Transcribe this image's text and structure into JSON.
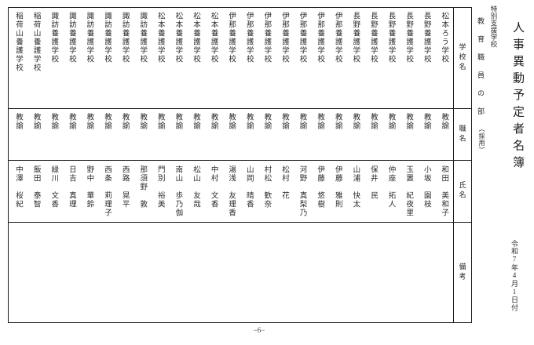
{
  "doc": {
    "title": "人事異動予定者名簿",
    "category": "特別支援学校",
    "section": "教育職員の部",
    "section_sub": "（採用）",
    "date": "令和7年4月1日付",
    "page_number": "−6−"
  },
  "table": {
    "headers": {
      "school": "学校名",
      "job": "職名",
      "name": "氏名",
      "note": "備考"
    },
    "people": [
      {
        "school": "松本ろう学校",
        "job": "教諭",
        "name": "和田　美和子",
        "note": ""
      },
      {
        "school": "長野養護学校",
        "job": "教諭",
        "name": "小坂　園枝",
        "note": ""
      },
      {
        "school": "長野養護学校",
        "job": "教諭",
        "name": "玉置　紀夜里",
        "note": ""
      },
      {
        "school": "長野養護学校",
        "job": "教諭",
        "name": "仲座　拓人",
        "note": ""
      },
      {
        "school": "長野養護学校",
        "job": "教諭",
        "name": "保井　民",
        "note": ""
      },
      {
        "school": "長野養護学校",
        "job": "教諭",
        "name": "山浦　快太",
        "note": ""
      },
      {
        "school": "伊那養護学校",
        "job": "教諭",
        "name": "伊藤　雅則",
        "note": ""
      },
      {
        "school": "伊那養護学校",
        "job": "教諭",
        "name": "伊藤　悠樹",
        "note": ""
      },
      {
        "school": "伊那養護学校",
        "job": "教諭",
        "name": "河野　真梨乃",
        "note": ""
      },
      {
        "school": "伊那養護学校",
        "job": "教諭",
        "name": "松村　花",
        "note": ""
      },
      {
        "school": "伊那養護学校",
        "job": "教諭",
        "name": "村松　歓奈",
        "note": ""
      },
      {
        "school": "伊那養護学校",
        "job": "教諭",
        "name": "山岡　晴香",
        "note": ""
      },
      {
        "school": "伊那養護学校",
        "job": "教諭",
        "name": "湯浅　友理香",
        "note": ""
      },
      {
        "school": "松本養護学校",
        "job": "教諭",
        "name": "中村　文香",
        "note": ""
      },
      {
        "school": "松本養護学校",
        "job": "教諭",
        "name": "松山　友哉",
        "note": ""
      },
      {
        "school": "松本養護学校",
        "job": "教諭",
        "name": "南山　歩乃伽",
        "note": ""
      },
      {
        "school": "松本養護学校",
        "job": "教諭",
        "name": "門別　裕美",
        "note": ""
      },
      {
        "school": "諏訪養護学校",
        "job": "教諭",
        "name": "那須野　敦",
        "note": ""
      },
      {
        "school": "諏訪養護学校",
        "job": "教諭",
        "name": "西路　晃平",
        "note": ""
      },
      {
        "school": "諏訪養護学校",
        "job": "教諭",
        "name": "西条　莉理子",
        "note": ""
      },
      {
        "school": "諏訪養護学校",
        "job": "教諭",
        "name": "野中　華鈴",
        "note": ""
      },
      {
        "school": "諏訪養護学校",
        "job": "教諭",
        "name": "日吉　真理",
        "note": ""
      },
      {
        "school": "諏訪養護学校",
        "job": "教諭",
        "name": "緑川　文香",
        "note": ""
      },
      {
        "school": "稲荷山養護学校",
        "job": "教諭",
        "name": "飯田　泰智",
        "note": ""
      },
      {
        "school": "稲荷山養護学校",
        "job": "教諭",
        "name": "中澤　桜紀",
        "note": ""
      }
    ]
  },
  "colors": {
    "text": "#2b2b2b",
    "line": "#1a1a1a",
    "background": "#ffffff"
  }
}
